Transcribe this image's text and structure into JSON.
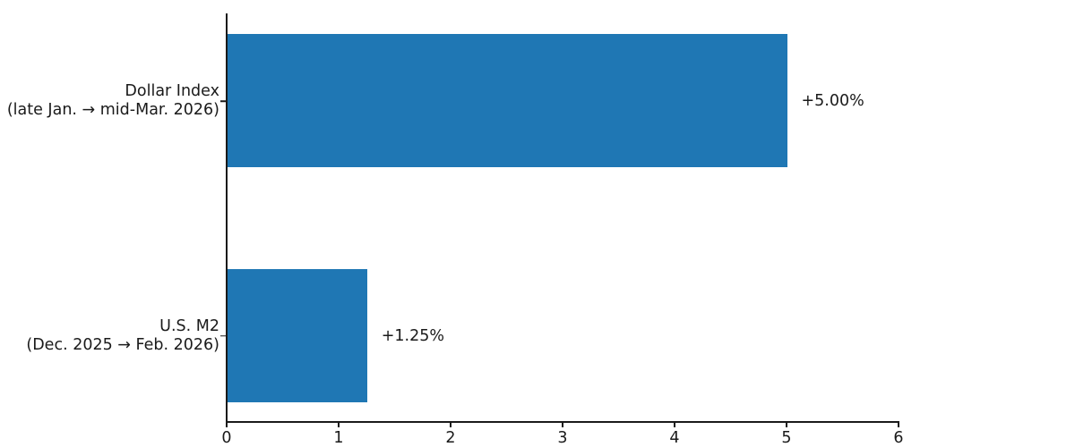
{
  "chart_data": {
    "type": "bar",
    "orientation": "horizontal",
    "title": "",
    "xlabel": "",
    "ylabel": "",
    "xlim": [
      0,
      6
    ],
    "x_ticks": [
      0,
      1,
      2,
      3,
      4,
      5,
      6
    ],
    "grid": false,
    "legend": null,
    "bar_color": "#1f77b4",
    "axis_color": "#1a1a1a",
    "categories": [
      "Dollar Index (late Jan. → mid-Mar. 2026)",
      "U.S. M2 (Dec. 2025 → Feb. 2026)"
    ],
    "values": [
      5.0,
      1.25
    ],
    "bars": [
      {
        "label_line1": "Dollar Index",
        "label_line2": "(late Jan. → mid-Mar. 2026)",
        "value": 5.0,
        "value_label": "+5.00%"
      },
      {
        "label_line1": "U.S. M2",
        "label_line2": "(Dec. 2025 → Feb. 2026)",
        "value": 1.25,
        "value_label": "+1.25%"
      }
    ]
  }
}
